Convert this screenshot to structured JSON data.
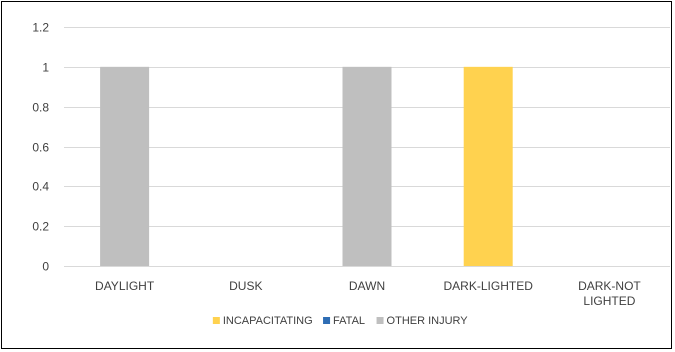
{
  "chart_data": {
    "type": "bar",
    "title": "",
    "xlabel": "",
    "ylabel": "",
    "categories": [
      [
        "DAYLIGHT"
      ],
      [
        "DUSK"
      ],
      [
        "DAWN"
      ],
      [
        "DARK-LIGHTED"
      ],
      [
        "DARK-NOT",
        "LIGHTED"
      ]
    ],
    "series": [
      {
        "name": "INCAPACITATING",
        "color": "#FFD24F",
        "values": [
          0,
          0,
          0,
          1,
          0
        ]
      },
      {
        "name": "FATAL",
        "color": "#2E6DB4",
        "values": [
          0,
          0,
          0,
          0,
          0
        ]
      },
      {
        "name": "OTHER INJURY",
        "color": "#BFBFBF",
        "values": [
          1,
          0,
          1,
          0,
          0
        ]
      }
    ],
    "ylim": [
      0,
      1.2
    ],
    "yticks": [
      0,
      0.2,
      0.4,
      0.6,
      0.8,
      1,
      1.2
    ],
    "ytick_labels": [
      "0",
      "0.2",
      "0.4",
      "0.6",
      "0.8",
      "1",
      "1.2"
    ],
    "grid": true,
    "legend_position": "bottom"
  }
}
